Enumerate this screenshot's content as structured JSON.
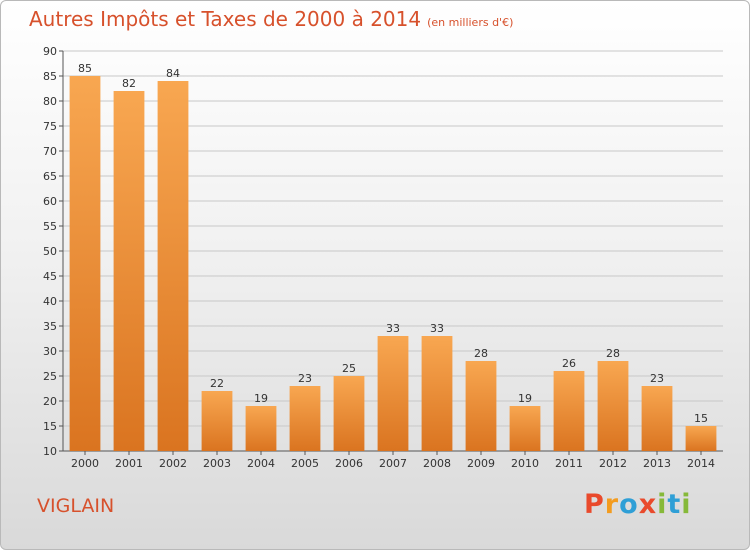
{
  "header": {
    "title": "Autres Impôts et Taxes de 2000 à 2014",
    "unit": "(en milliers d'€)"
  },
  "footer": {
    "place": "VIGLAIN",
    "brand": "Proxiti"
  },
  "colors": {
    "title": "#d7512c",
    "bar_top": "#f8a751",
    "bar_bottom": "#da7420",
    "grid": "#c8c8c8",
    "brand_letters": [
      "#e94a2c",
      "#f39c1f",
      "#2f9fd6",
      "#e94a2c",
      "#86b939",
      "#2f9fd6",
      "#86b939"
    ]
  },
  "chart_data": {
    "type": "bar",
    "categories": [
      "2000",
      "2001",
      "2002",
      "2003",
      "2004",
      "2005",
      "2006",
      "2007",
      "2008",
      "2009",
      "2010",
      "2011",
      "2012",
      "2013",
      "2014"
    ],
    "values": [
      85,
      82,
      84,
      22,
      19,
      23,
      25,
      33,
      33,
      28,
      19,
      26,
      28,
      23,
      15
    ],
    "title": "Autres Impôts et Taxes de 2000 à 2014",
    "ylim": [
      10,
      90
    ],
    "yticks": [
      10,
      15,
      20,
      25,
      30,
      35,
      40,
      45,
      50,
      55,
      60,
      65,
      70,
      75,
      80,
      85,
      90
    ],
    "grid": true,
    "data_labels": true
  }
}
